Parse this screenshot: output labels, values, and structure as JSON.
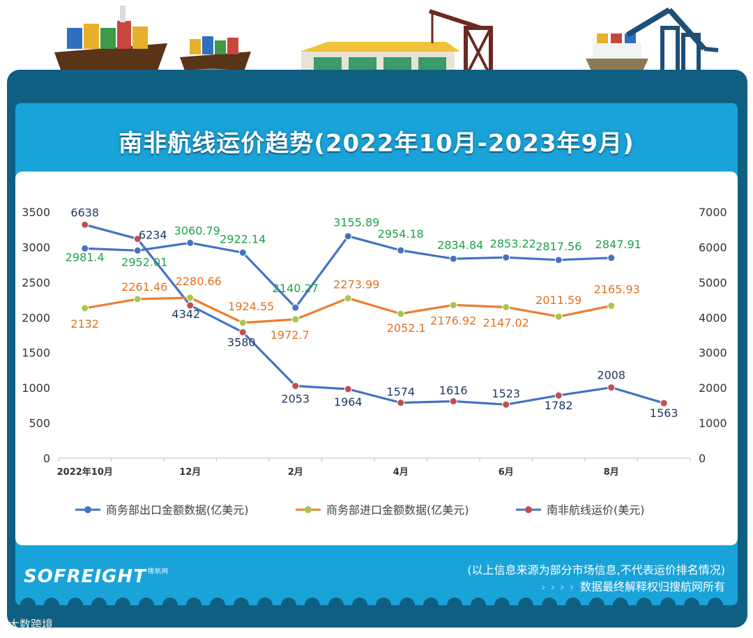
{
  "title": "南非航线运价趋势(2022年10月-2023年9月)",
  "footer": {
    "note_line1": "(以上信息来源为部分市场信息,不代表运价排名情况)",
    "arrows": "› › › ›",
    "note_line2": "数据最终解释权归搜航网所有",
    "logo_text": "SOFREIGHT",
    "logo_sub": "搜航网",
    "watermark": "大数跨境"
  },
  "colors": {
    "frame_dark": "#0f5f82",
    "frame_panel": "#1aa3d9",
    "export_line": "#4472c4",
    "export_label": "#1aa34a",
    "import_line": "#ed7d31",
    "import_label": "#e2711d",
    "freight_line": "#4472c4",
    "freight_label": "#1f3864",
    "marker_export": "#4472c4",
    "marker_import": "#a5c74a",
    "marker_freight": "#c0504d",
    "axis_text": "#333333"
  },
  "chart_data": {
    "type": "line",
    "x": [
      "2022年10月",
      "2022年11月",
      "2022年12月",
      "2023年1月",
      "2023年2月",
      "2023年3月",
      "2023年4月",
      "2023年5月",
      "2023年6月",
      "2023年7月",
      "2023年8月",
      "2023年9月"
    ],
    "x_tick_labels": [
      "2022年10月",
      "",
      "12月",
      "",
      "2月",
      "",
      "4月",
      "",
      "6月",
      "",
      "8月",
      ""
    ],
    "y_left": {
      "min": 0,
      "max": 3500,
      "step": 500,
      "ticks": [
        "0",
        "500",
        "1000",
        "1500",
        "2000",
        "2500",
        "3000",
        "3500"
      ]
    },
    "y_right": {
      "min": 0,
      "max": 7000,
      "step": 1000,
      "ticks": [
        "0",
        "1000",
        "2000",
        "3000",
        "4000",
        "5000",
        "6000",
        "7000"
      ]
    },
    "series": [
      {
        "name": "商务部出口金额数据(亿美元)",
        "axis": "left",
        "values": [
          2981.4,
          2952.01,
          3060.79,
          2922.14,
          2140.27,
          3155.89,
          2954.18,
          2834.84,
          2853.22,
          2817.56,
          2847.91,
          null
        ],
        "labels": [
          "2981.4",
          "2952.01",
          "3060.79",
          "2922.14",
          "2140.27",
          "3155.89",
          "2954.18",
          "2834.84",
          "2853.22",
          "2817.56",
          "2847.91",
          ""
        ]
      },
      {
        "name": "商务部进口金额数据(亿美元)",
        "axis": "left",
        "values": [
          2132,
          2261.46,
          2280.66,
          1924.55,
          1972.7,
          2273.99,
          2052.1,
          2176.92,
          2147.02,
          2011.59,
          2165.93,
          null
        ],
        "labels": [
          "2132",
          "2261.46",
          "2280.66",
          "1924.55",
          "1972.7",
          "2273.99",
          "2052.1",
          "2176.92",
          "2147.02",
          "2011.59",
          "2165.93",
          ""
        ]
      },
      {
        "name": "南非航线运价(美元)",
        "axis": "right",
        "values": [
          6638,
          6234,
          4342,
          3580,
          2053,
          1964,
          1574,
          1616,
          1523,
          1782,
          2008,
          1563
        ],
        "labels": [
          "6638",
          "6234",
          "4342",
          "3580",
          "2053",
          "1964",
          "1574",
          "1616",
          "1523",
          "1782",
          "2008",
          "1563"
        ]
      }
    ],
    "legend_position": "bottom",
    "grid": false
  }
}
